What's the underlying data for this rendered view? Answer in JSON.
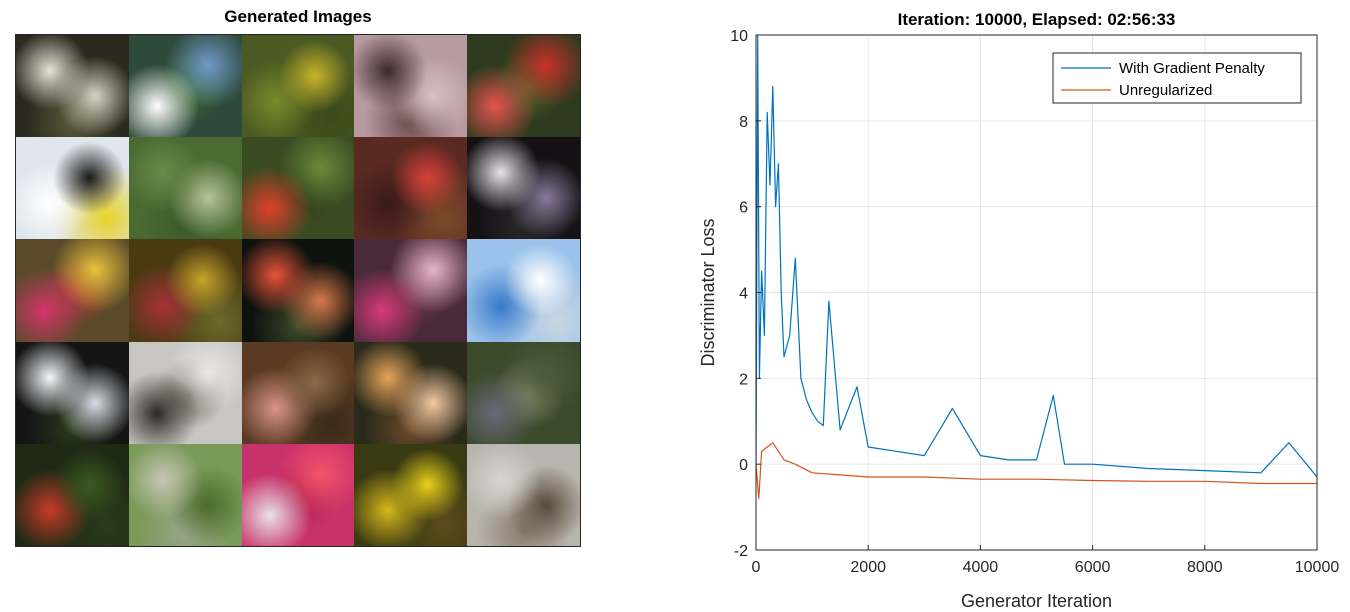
{
  "left_panel": {
    "title": "Generated Images",
    "rows": 5,
    "cols": 5,
    "tiles": [
      {
        "bg": "#2a2a1e",
        "blobs": [
          "#e8e2d8",
          "#d9d2c4",
          "#5a5a3a"
        ]
      },
      {
        "bg": "#2e4a3a",
        "blobs": [
          "#ffffff",
          "#6f9acb",
          "#3f6f2f"
        ]
      },
      {
        "bg": "#4a5a22",
        "blobs": [
          "#c9b42a",
          "#7a8a2a",
          "#3a4a1a"
        ]
      },
      {
        "bg": "#b89aa2",
        "blobs": [
          "#3a2a2a",
          "#d8c2c4",
          "#6a4a4a"
        ]
      },
      {
        "bg": "#2e3a1e",
        "blobs": [
          "#e8544e",
          "#c8302a",
          "#4a6a2a"
        ]
      },
      {
        "bg": "#dfe6ee",
        "blobs": [
          "#1a1a1a",
          "#ffffff",
          "#e8d22a"
        ]
      },
      {
        "bg": "#4a6a32",
        "blobs": [
          "#6a8a4a",
          "#b6c49a",
          "#3a5a2a"
        ]
      },
      {
        "bg": "#3a4a22",
        "blobs": [
          "#e0402a",
          "#6a8a3a",
          "#2a3a1a"
        ]
      },
      {
        "bg": "#5a2a22",
        "blobs": [
          "#d8403a",
          "#3a1a1a",
          "#7a4a2a"
        ]
      },
      {
        "bg": "#141014",
        "blobs": [
          "#e6e2ea",
          "#8a7a9a",
          "#2a2a2a"
        ]
      },
      {
        "bg": "#5a4a2a",
        "blobs": [
          "#d6346a",
          "#e8c23a",
          "#a83a3a"
        ]
      },
      {
        "bg": "#4a3a12",
        "blobs": [
          "#c8a42a",
          "#a8303a",
          "#6a6a2a"
        ]
      },
      {
        "bg": "#0e120e",
        "blobs": [
          "#e8543a",
          "#d8784a",
          "#3a4a2a"
        ]
      },
      {
        "bg": "#4a2a3a",
        "blobs": [
          "#d83a7a",
          "#e8b6c8",
          "#6a3a4a"
        ]
      },
      {
        "bg": "#9ac2ea",
        "blobs": [
          "#ffffff",
          "#3a7ac8",
          "#c8d6e2"
        ]
      },
      {
        "bg": "#141414",
        "blobs": [
          "#f4f6fa",
          "#d8dce6",
          "#2a3a1a"
        ]
      },
      {
        "bg": "#c8c6c2",
        "blobs": [
          "#2a2a22",
          "#eae8e6",
          "#6a6a5a"
        ]
      },
      {
        "bg": "#5a3a22",
        "blobs": [
          "#8a6a4a",
          "#d8948a",
          "#3a2a1a"
        ]
      },
      {
        "bg": "#2a2a1a",
        "blobs": [
          "#e8a45a",
          "#f2c8a2",
          "#6a4a2a"
        ]
      },
      {
        "bg": "#3a4a2a",
        "blobs": [
          "#6a6a7a",
          "#4a5a3a",
          "#8a8a6a"
        ]
      },
      {
        "bg": "#1e2a14",
        "blobs": [
          "#3a5a22",
          "#c83a2a",
          "#2a3a1a"
        ]
      },
      {
        "bg": "#7a9a5a",
        "blobs": [
          "#c8c6b6",
          "#4a6a2a",
          "#9aa68a"
        ]
      },
      {
        "bg": "#c8326a",
        "blobs": [
          "#e8e2e6",
          "#f4546a",
          "#a81a4a"
        ]
      },
      {
        "bg": "#3a3a12",
        "blobs": [
          "#e8d21a",
          "#d6b81a",
          "#5a4a1a"
        ]
      },
      {
        "bg": "#b8b4ae",
        "blobs": [
          "#d8d4ce",
          "#5a4a3a",
          "#8a7a6a"
        ]
      }
    ]
  },
  "chart_data": {
    "type": "line",
    "title": "Iteration: 10000, Elapsed: 02:56:33",
    "xlabel": "Generator Iteration",
    "ylabel": "Discriminator Loss",
    "xlim": [
      0,
      10000
    ],
    "ylim": [
      -2,
      10
    ],
    "xticks": [
      0,
      2000,
      4000,
      6000,
      8000,
      10000
    ],
    "yticks": [
      -2,
      0,
      2,
      4,
      6,
      8,
      10
    ],
    "grid": true,
    "legend_position": "top-right",
    "series": [
      {
        "name": "With Gradient Penalty",
        "color": "#0072BD",
        "points": [
          [
            0,
            0.0
          ],
          [
            30,
            10.0
          ],
          [
            60,
            2.0
          ],
          [
            100,
            4.5
          ],
          [
            150,
            3.0
          ],
          [
            200,
            8.2
          ],
          [
            250,
            6.5
          ],
          [
            300,
            8.8
          ],
          [
            350,
            6.0
          ],
          [
            400,
            7.0
          ],
          [
            450,
            4.0
          ],
          [
            500,
            2.5
          ],
          [
            600,
            3.0
          ],
          [
            700,
            4.8
          ],
          [
            800,
            2.0
          ],
          [
            900,
            1.5
          ],
          [
            1000,
            1.2
          ],
          [
            1100,
            1.0
          ],
          [
            1200,
            0.9
          ],
          [
            1300,
            3.8
          ],
          [
            1500,
            0.8
          ],
          [
            1800,
            1.8
          ],
          [
            2000,
            0.4
          ],
          [
            2500,
            0.3
          ],
          [
            3000,
            0.2
          ],
          [
            3500,
            1.3
          ],
          [
            4000,
            0.2
          ],
          [
            4500,
            0.1
          ],
          [
            5000,
            0.1
          ],
          [
            5300,
            1.6
          ],
          [
            5500,
            0.0
          ],
          [
            6000,
            0.0
          ],
          [
            7000,
            -0.1
          ],
          [
            8000,
            -0.15
          ],
          [
            9000,
            -0.2
          ],
          [
            9500,
            0.5
          ],
          [
            10000,
            -0.3
          ]
        ]
      },
      {
        "name": "Unregularized",
        "color": "#D95319",
        "points": [
          [
            0,
            0.0
          ],
          [
            50,
            -0.8
          ],
          [
            100,
            0.3
          ],
          [
            200,
            0.4
          ],
          [
            300,
            0.5
          ],
          [
            400,
            0.3
          ],
          [
            500,
            0.1
          ],
          [
            700,
            0.0
          ],
          [
            1000,
            -0.2
          ],
          [
            1500,
            -0.25
          ],
          [
            2000,
            -0.3
          ],
          [
            3000,
            -0.3
          ],
          [
            4000,
            -0.35
          ],
          [
            5000,
            -0.35
          ],
          [
            6000,
            -0.38
          ],
          [
            7000,
            -0.4
          ],
          [
            8000,
            -0.4
          ],
          [
            9000,
            -0.45
          ],
          [
            10000,
            -0.45
          ]
        ]
      }
    ]
  }
}
